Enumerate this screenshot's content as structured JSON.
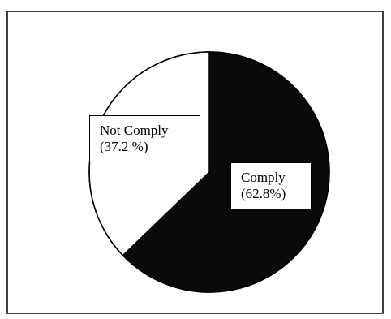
{
  "chart_data": {
    "type": "pie",
    "start_angle_deg": 0,
    "direction": "clockwise",
    "slices": [
      {
        "label": "Comply",
        "value": 62.8,
        "display": "(62.8%)",
        "color": "#0a0a0a"
      },
      {
        "label": "Not Comply",
        "value": 37.2,
        "display": "(37.2 %)",
        "color": "#ffffff"
      }
    ],
    "legend": "none",
    "grid": false
  }
}
